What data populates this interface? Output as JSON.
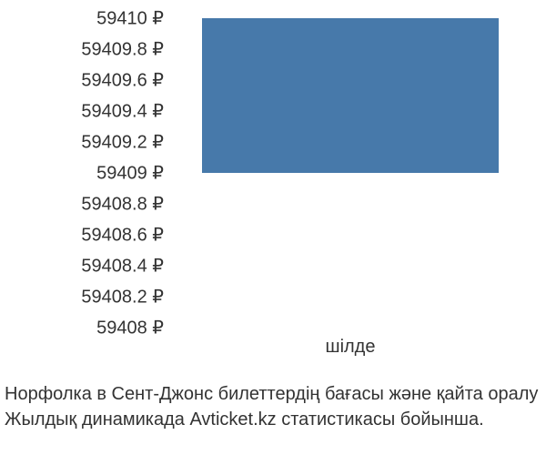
{
  "chart": {
    "type": "bar",
    "ylim": [
      59408,
      59410
    ],
    "ytick_step": 0.2,
    "yticks": [
      {
        "value": 59410,
        "label": "59410 ₽"
      },
      {
        "value": 59409.8,
        "label": "59409.8 ₽"
      },
      {
        "value": 59409.6,
        "label": "59409.6 ₽"
      },
      {
        "value": 59409.4,
        "label": "59409.4 ₽"
      },
      {
        "value": 59409.2,
        "label": "59409.2 ₽"
      },
      {
        "value": 59409,
        "label": "59409 ₽"
      },
      {
        "value": 59408.8,
        "label": "59408.8 ₽"
      },
      {
        "value": 59408.6,
        "label": "59408.6 ₽"
      },
      {
        "value": 59408.4,
        "label": "59408.4 ₽"
      },
      {
        "value": 59408.2,
        "label": "59408.2 ₽"
      },
      {
        "value": 59408,
        "label": "59408 ₽"
      }
    ],
    "categories": [
      "шілде"
    ],
    "bars": [
      {
        "category": "шілде",
        "ymin": 59409,
        "ymax": 59410
      }
    ],
    "bar_color": "#4779aa",
    "bar_width_ratio": 0.88,
    "background_color": "#ffffff",
    "text_color": "#333333",
    "ytick_fontsize": 20,
    "xtick_fontsize": 20,
    "caption_fontsize": 20
  },
  "caption": {
    "line1": "Норфолка в Сент-Джонс билеттердің бағасы және қайта оралу",
    "line2": "Жылдық динамикада Avticket.kz статистикасы бойынша."
  }
}
